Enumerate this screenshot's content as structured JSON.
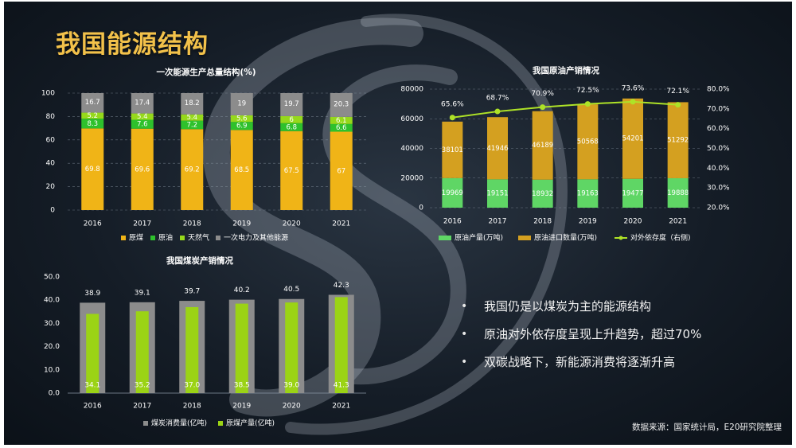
{
  "title": "我国能源结构",
  "bullets": [
    "我国仍是以煤炭为主的能源结构",
    "原油对外依存度呈现上升趋势，超过70%",
    "双碳战略下，新能源消费将逐渐升高"
  ],
  "source": "数据来源：国家统计局，E20研究院整理",
  "colors": {
    "coal": "#f0b417",
    "oil": "#2ec12c",
    "gas": "#96d91b",
    "other": "#8c8c8c",
    "crude_prod": "#5fd665",
    "crude_import": "#d4a020",
    "dependency": "#aee227",
    "coal_cons": "#8c8c8c",
    "coal_prod": "#9bd315",
    "title": "#f2c14a"
  },
  "chart_data": [
    {
      "type": "bar",
      "stacked": true,
      "title": "一次能源生产总量结构(%)",
      "categories": [
        "2016",
        "2017",
        "2018",
        "2019",
        "2020",
        "2021"
      ],
      "series": [
        {
          "name": "原煤",
          "values": [
            69.8,
            69.6,
            69.2,
            68.5,
            67.5,
            67
          ]
        },
        {
          "name": "原油",
          "values": [
            8.3,
            7.6,
            7.2,
            6.9,
            6.8,
            6.6
          ]
        },
        {
          "name": "天然气",
          "values": [
            5.2,
            5.4,
            5.4,
            5.6,
            6,
            6.1
          ]
        },
        {
          "name": "一次电力及其他能源",
          "values": [
            16.7,
            17.4,
            18.2,
            19,
            19.7,
            20.3
          ]
        }
      ],
      "yticks": [
        "0",
        "20",
        "40",
        "60",
        "80",
        "100"
      ],
      "ylim": [
        0,
        100
      ],
      "legend": "bottom",
      "grid": true
    },
    {
      "type": "bar",
      "stacked": true,
      "title": "我国原油产销情况",
      "categories": [
        "2016",
        "2017",
        "2018",
        "2019",
        "2020",
        "2021"
      ],
      "series": [
        {
          "name": "原油产量(万吨)",
          "values": [
            19969,
            19151,
            18932,
            19163,
            19477,
            19888
          ]
        },
        {
          "name": "原油进口数量(万吨)",
          "values": [
            38101,
            41946,
            46189,
            50568,
            54201,
            51292
          ]
        },
        {
          "name": "对外依存度（右侧)",
          "type": "line",
          "axis": "right",
          "values": [
            65.6,
            68.7,
            70.9,
            72.5,
            73.6,
            72.1
          ],
          "labels": [
            "65.6%",
            "68.7%",
            "70.9%",
            "72.5%",
            "73.6%",
            "72.1%"
          ]
        }
      ],
      "yticks": [
        "0",
        "20000",
        "40000",
        "60000",
        "80000"
      ],
      "ylim": [
        0,
        80000
      ],
      "y2ticks": [
        "20.0%",
        "30.0%",
        "40.0%",
        "50.0%",
        "60.0%",
        "70.0%",
        "80.0%"
      ],
      "y2lim": [
        20,
        80
      ],
      "legend": "bottom",
      "grid": true
    },
    {
      "type": "bar",
      "title": "我国煤炭产销情况",
      "categories": [
        "2016",
        "2017",
        "2018",
        "2019",
        "2020",
        "2021"
      ],
      "series": [
        {
          "name": "煤炭消费量(亿吨)",
          "values": [
            38.9,
            39.1,
            39.7,
            40.2,
            40.5,
            42.3
          ]
        },
        {
          "name": "原煤产量(亿吨)",
          "values": [
            34.1,
            35.2,
            37.0,
            38.5,
            39.0,
            41.3
          ],
          "labels": [
            "34.1",
            "35.2",
            "37.0",
            "38.5",
            "39.0",
            "41.3"
          ]
        }
      ],
      "yticks": [
        "0.0",
        "10.0",
        "20.0",
        "30.0",
        "40.0",
        "50.0"
      ],
      "ylim": [
        0,
        50
      ],
      "legend": "bottom",
      "grid": false
    }
  ]
}
